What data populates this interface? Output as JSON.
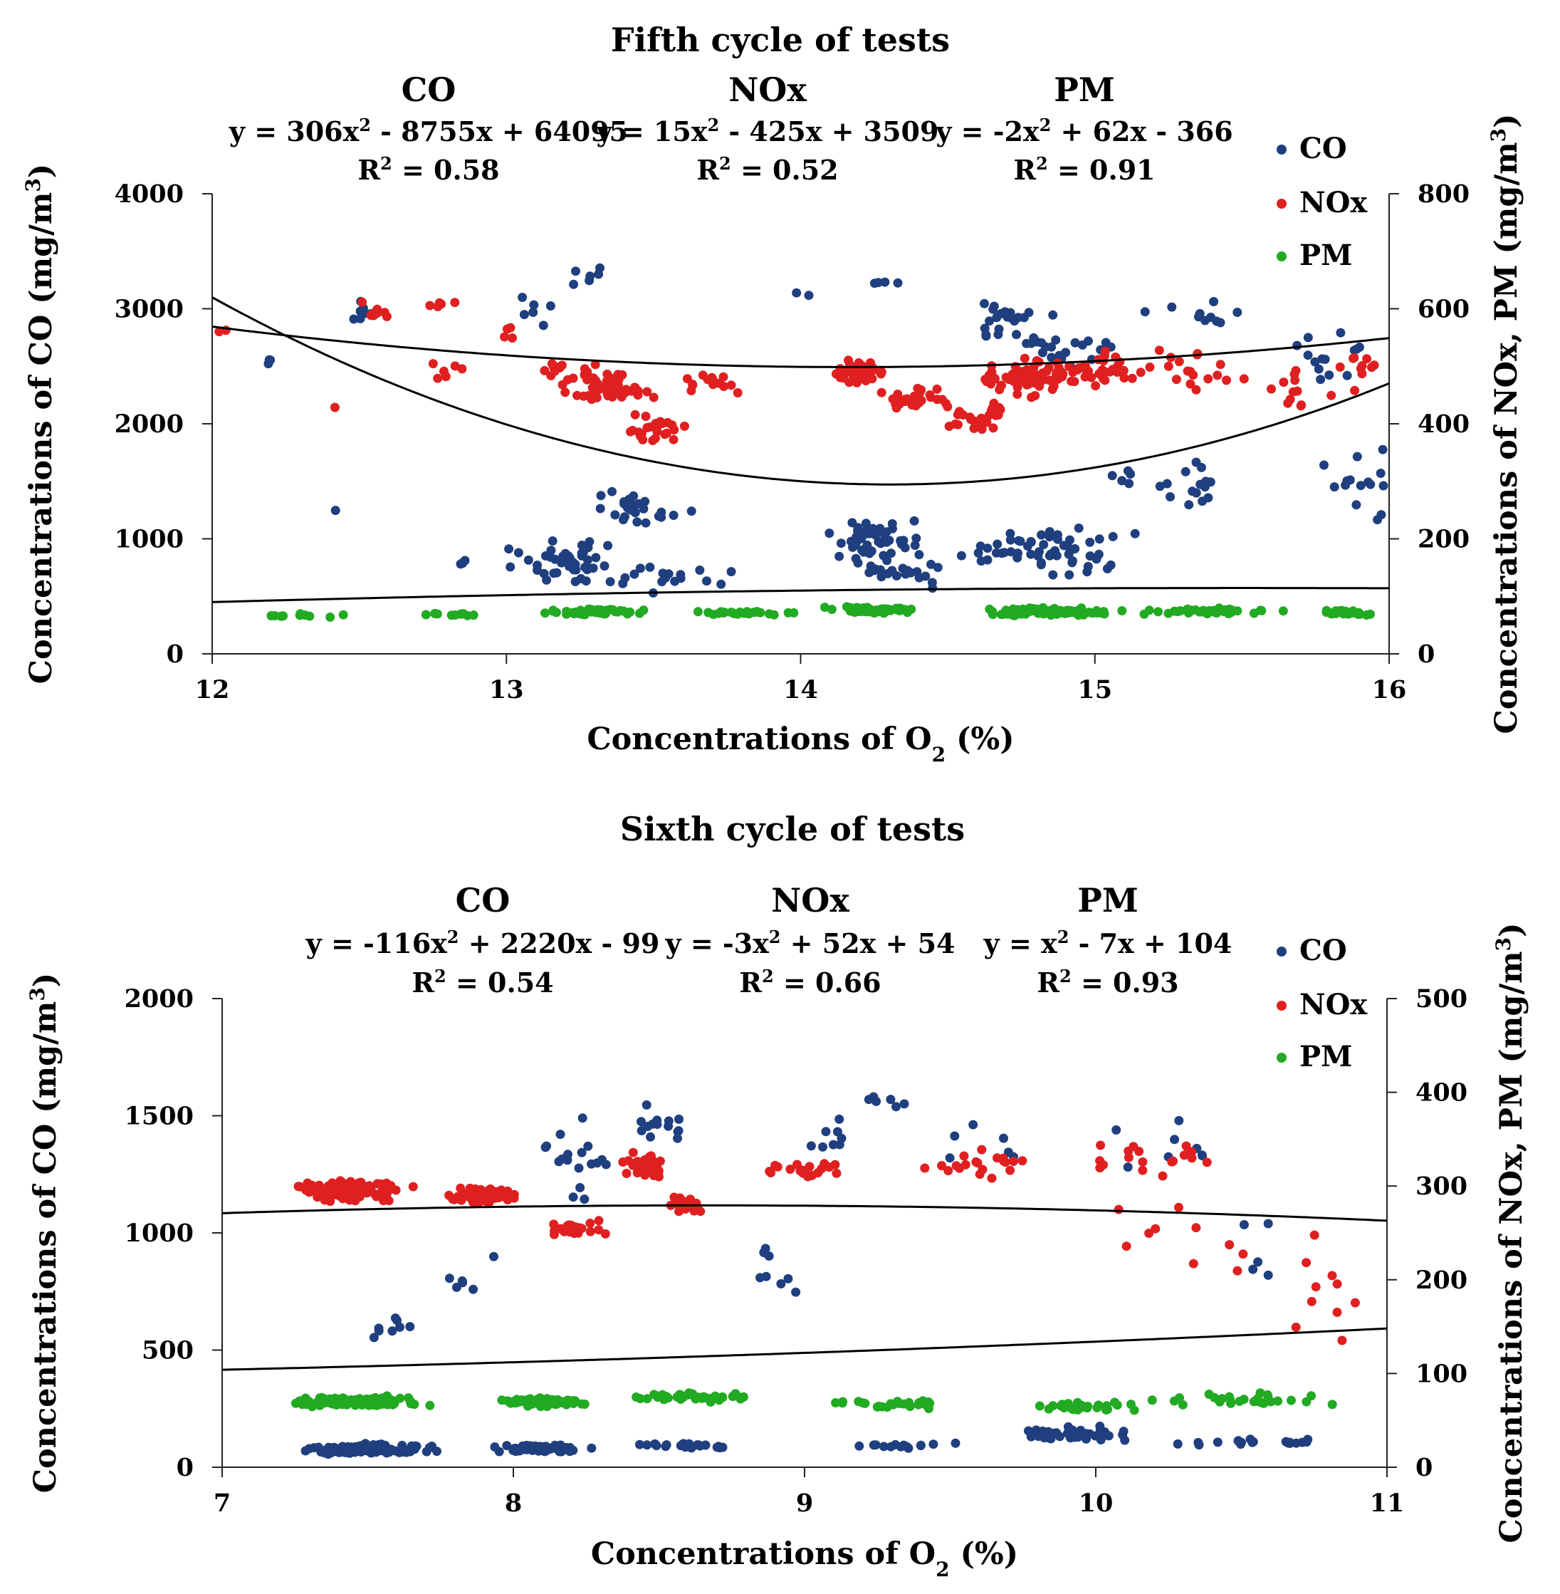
{
  "chart_data": [
    {
      "type": "scatter",
      "title": "Fifth cycle of tests",
      "xlabel": "Concentrations of O",
      "xlabel_sub": "2",
      "xlabel_tail": " (%)",
      "ylabel": "Concentrations of CO (mg/m",
      "ylabel_sup": "3",
      "ylabel_tail": ")",
      "y2label": "Concentrations of NOx, PM (mg/m",
      "y2label_sup": "3",
      "y2label_tail": ")",
      "xlim": [
        12,
        16
      ],
      "ylim": [
        0,
        4000
      ],
      "y2lim": [
        0,
        800
      ],
      "xticks": [
        "12",
        "13",
        "14",
        "15",
        "16"
      ],
      "yticks": [
        "0",
        "1000",
        "2000",
        "3000",
        "4000"
      ],
      "y2ticks": [
        "0",
        "200",
        "400",
        "600",
        "800"
      ],
      "legend": [
        "CO",
        "NOx",
        "PM"
      ],
      "annotations": [
        {
          "name": "CO",
          "eq_a": "y = 306x",
          "eq_b": " - 8755x + 64095",
          "r2_a": "R",
          "r2_b": " = 0.58"
        },
        {
          "name": "NOx",
          "eq_a": "y = 15x",
          "eq_b": " - 425x + 3509",
          "r2_a": "R",
          "r2_b": " = 0.52"
        },
        {
          "name": "PM",
          "eq_a": "y = -2x",
          "eq_b": " + 62x - 366",
          "r2_a": "R",
          "r2_b": " = 0.91"
        }
      ],
      "series": [
        {
          "name": "CO",
          "axis": "left",
          "color": "#1f3f7f",
          "fit": [
            306,
            -8755,
            64095
          ],
          "clusters": [
            [
              12.5,
              2950,
              0.08,
              200,
              8
            ],
            [
              12.2,
              2560,
              0.03,
              60,
              3
            ],
            [
              12.42,
              1240,
              0.02,
              30,
              1
            ],
            [
              12.85,
              780,
              0.05,
              60,
              4
            ],
            [
              13.1,
              2950,
              0.15,
              200,
              6
            ],
            [
              13.3,
              3300,
              0.2,
              150,
              6
            ],
            [
              13.2,
              800,
              0.25,
              250,
              45
            ],
            [
              13.45,
              1250,
              0.2,
              200,
              25
            ],
            [
              13.5,
              650,
              0.35,
              150,
              18
            ],
            [
              14.0,
              3150,
              0.05,
              50,
              2
            ],
            [
              14.3,
              3250,
              0.2,
              80,
              4
            ],
            [
              14.25,
              1000,
              0.2,
              250,
              55
            ],
            [
              14.35,
              700,
              0.2,
              150,
              20
            ],
            [
              14.7,
              2900,
              0.2,
              250,
              22
            ],
            [
              14.9,
              2650,
              0.25,
              250,
              22
            ],
            [
              14.85,
              900,
              0.35,
              300,
              60
            ],
            [
              15.3,
              2950,
              0.3,
              150,
              10
            ],
            [
              15.3,
              1450,
              0.3,
              300,
              20
            ],
            [
              15.8,
              2600,
              0.2,
              350,
              14
            ],
            [
              15.9,
              1500,
              0.15,
              400,
              15
            ]
          ]
        },
        {
          "name": "NOx",
          "axis": "right",
          "color": "#e02020",
          "fit": [
            15,
            -425,
            3509
          ],
          "clusters": [
            [
              12.05,
              560,
              0.05,
              10,
              2
            ],
            [
              12.55,
              590,
              0.08,
              25,
              10
            ],
            [
              12.78,
              610,
              0.08,
              15,
              5
            ],
            [
              12.42,
              430,
              0.01,
              5,
              1
            ],
            [
              12.8,
              480,
              0.1,
              40,
              6
            ],
            [
              13.0,
              560,
              0.05,
              40,
              4
            ],
            [
              13.2,
              480,
              0.15,
              50,
              20
            ],
            [
              13.35,
              460,
              0.18,
              35,
              45
            ],
            [
              13.5,
              390,
              0.15,
              35,
              25
            ],
            [
              13.7,
              470,
              0.15,
              30,
              16
            ],
            [
              14.2,
              490,
              0.12,
              30,
              40
            ],
            [
              14.4,
              440,
              0.2,
              30,
              25
            ],
            [
              14.6,
              410,
              0.12,
              35,
              30
            ],
            [
              14.8,
              480,
              0.25,
              40,
              70
            ],
            [
              15.0,
              500,
              0.15,
              40,
              30
            ],
            [
              15.3,
              490,
              0.25,
              60,
              20
            ],
            [
              15.7,
              470,
              0.15,
              60,
              12
            ],
            [
              15.9,
              500,
              0.1,
              50,
              10
            ]
          ]
        },
        {
          "name": "PM",
          "axis": "right",
          "color": "#22aa22",
          "fit": [
            -2,
            62,
            -366
          ],
          "clusters": [
            [
              12.3,
              67,
              0.25,
              5,
              10
            ],
            [
              12.8,
              69,
              0.2,
              5,
              10
            ],
            [
              13.3,
              73,
              0.2,
              8,
              55
            ],
            [
              13.8,
              71,
              0.25,
              6,
              25
            ],
            [
              14.25,
              76,
              0.2,
              8,
              50
            ],
            [
              14.85,
              73,
              0.3,
              9,
              90
            ],
            [
              15.4,
              74,
              0.3,
              7,
              40
            ],
            [
              15.85,
              71,
              0.15,
              6,
              25
            ]
          ]
        }
      ]
    },
    {
      "type": "scatter",
      "title": "Sixth cycle of tests",
      "xlabel": "Concentrations of O",
      "xlabel_sub": "2",
      "xlabel_tail": " (%)",
      "ylabel": "Concentrations of CO (mg/m",
      "ylabel_sup": "3",
      "ylabel_tail": ")",
      "y2label": "Concentrations of NOx, PM (mg/m",
      "y2label_sup": "3",
      "y2label_tail": ")",
      "xlim": [
        7,
        11
      ],
      "ylim": [
        0,
        2000
      ],
      "y2lim": [
        0,
        500
      ],
      "xticks": [
        "7",
        "8",
        "9",
        "10",
        "11"
      ],
      "yticks": [
        "0",
        "500",
        "1000",
        "1500",
        "2000"
      ],
      "y2ticks": [
        "0",
        "100",
        "200",
        "300",
        "400",
        "500"
      ],
      "legend": [
        "CO",
        "NOx",
        "PM"
      ],
      "annotations": [
        {
          "name": "CO",
          "eq_a": "y = -116x",
          "eq_b": " + 2220x - 99",
          "r2_a": "R",
          "r2_b": " = 0.54"
        },
        {
          "name": "NOx",
          "eq_a": "y = -3x",
          "eq_b": " + 52x + 54",
          "r2_a": "R",
          "r2_b": " = 0.66"
        },
        {
          "name": "PM",
          "eq_a": "y = x",
          "eq_b": " - 7x + 104",
          "r2_a": "R",
          "r2_b": " = 0.93"
        }
      ],
      "series": [
        {
          "name": "CO",
          "axis": "left",
          "color": "#1f3f7f",
          "fit": [
            -116,
            2220,
            -99
          ],
          "clusters": [
            [
              7.5,
              80,
              0.28,
              30,
              110
            ],
            [
              8.1,
              80,
              0.2,
              25,
              60
            ],
            [
              8.6,
              90,
              0.3,
              20,
              25
            ],
            [
              9.3,
              90,
              0.3,
              20,
              15
            ],
            [
              9.9,
              140,
              0.3,
              40,
              40
            ],
            [
              10.5,
              110,
              0.3,
              20,
              20
            ],
            [
              7.6,
              600,
              0.15,
              100,
              8
            ],
            [
              7.85,
              800,
              0.1,
              150,
              6
            ],
            [
              8.2,
              1300,
              0.2,
              250,
              18
            ],
            [
              8.5,
              1450,
              0.15,
              150,
              14
            ],
            [
              9.1,
              1400,
              0.15,
              150,
              8
            ],
            [
              9.3,
              1550,
              0.15,
              60,
              6
            ],
            [
              8.9,
              800,
              0.1,
              200,
              8
            ],
            [
              9.6,
              1350,
              0.3,
              150,
              6
            ],
            [
              10.3,
              1400,
              0.3,
              150,
              8
            ],
            [
              10.6,
              900,
              0.2,
              300,
              5
            ]
          ]
        },
        {
          "name": "NOx",
          "axis": "right",
          "color": "#e02020",
          "fit": [
            -3,
            52,
            54
          ],
          "clusters": [
            [
              7.45,
              295,
              0.25,
              15,
              110
            ],
            [
              7.9,
              290,
              0.15,
              12,
              70
            ],
            [
              8.2,
              255,
              0.15,
              10,
              30
            ],
            [
              8.45,
              320,
              0.1,
              25,
              35
            ],
            [
              8.6,
              280,
              0.1,
              15,
              20
            ],
            [
              9.0,
              320,
              0.2,
              15,
              20
            ],
            [
              9.6,
              325,
              0.3,
              25,
              20
            ],
            [
              10.2,
              330,
              0.3,
              30,
              20
            ],
            [
              10.3,
              240,
              0.4,
              60,
              10
            ],
            [
              10.8,
              180,
              0.2,
              80,
              10
            ]
          ]
        },
        {
          "name": "PM",
          "axis": "right",
          "color": "#22aa22",
          "fit": [
            1,
            -7,
            104
          ],
          "clusters": [
            [
              7.45,
              70,
              0.3,
              7,
              130
            ],
            [
              8.1,
              70,
              0.2,
              7,
              60
            ],
            [
              8.6,
              75,
              0.3,
              7,
              40
            ],
            [
              9.3,
              68,
              0.3,
              7,
              25
            ],
            [
              9.95,
              65,
              0.25,
              7,
              30
            ],
            [
              10.5,
              72,
              0.35,
              8,
              30
            ]
          ]
        }
      ]
    }
  ]
}
